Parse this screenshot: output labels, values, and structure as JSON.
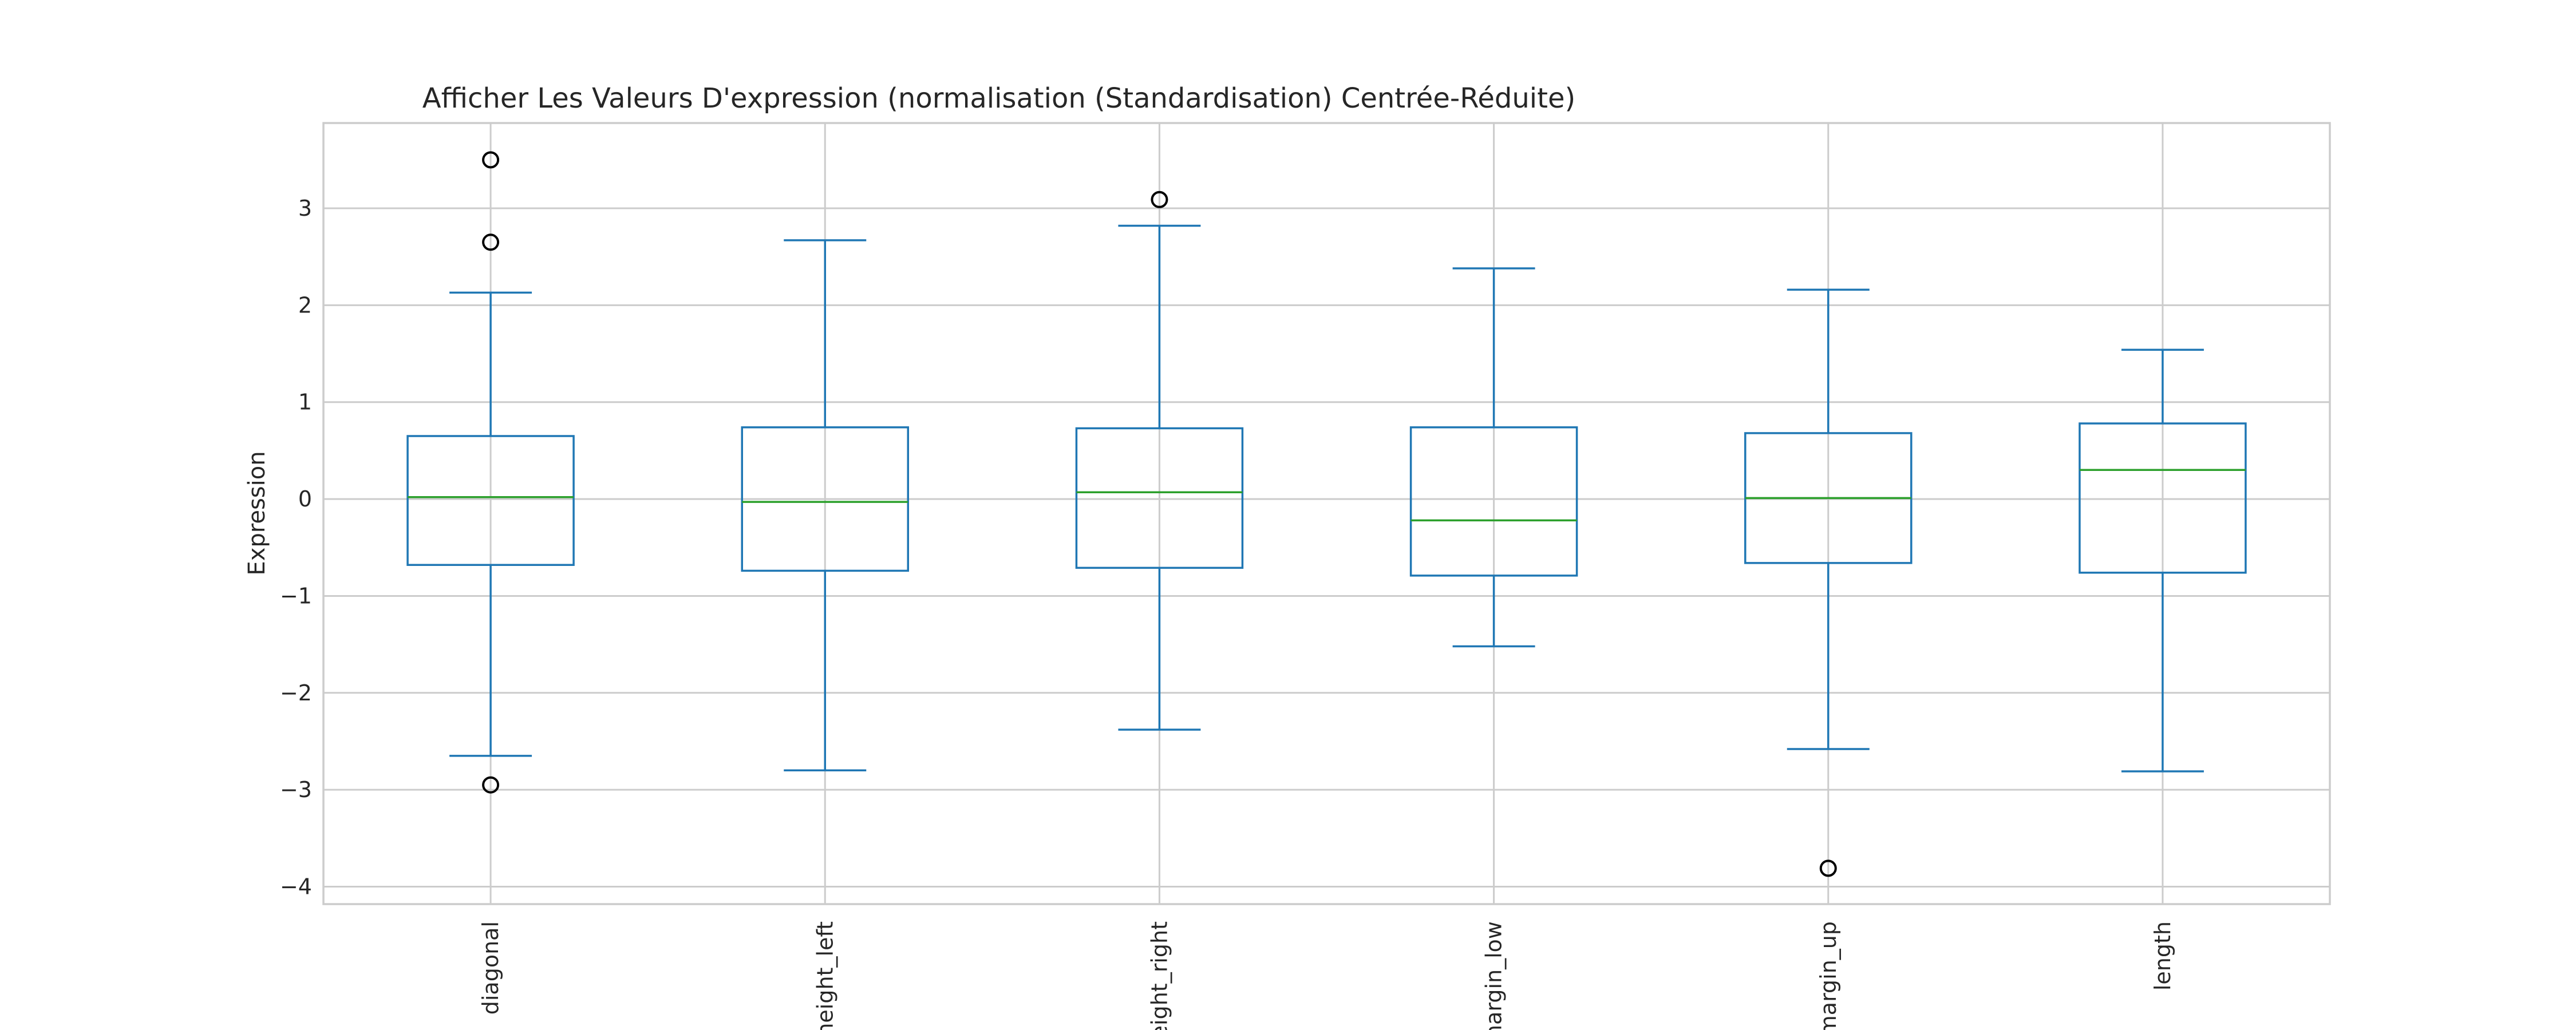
{
  "chart_data": {
    "type": "box",
    "title": "Afficher Les Valeurs D'expression (normalisation (Standardisation) Centrée-Réduite)",
    "xlabel": "",
    "ylabel": "Expression",
    "ylim": [
      -4.18,
      3.88
    ],
    "yticks": [
      -4,
      -3,
      -2,
      -1,
      0,
      1,
      2,
      3
    ],
    "ytick_labels": [
      "−4",
      "−3",
      "−2",
      "−1",
      "0",
      "1",
      "2",
      "3"
    ],
    "grid": true,
    "categories": [
      "diagonal",
      "height_left",
      "height_right",
      "margin_low",
      "margin_up",
      "length"
    ],
    "boxes": [
      {
        "name": "diagonal",
        "whislo": -2.65,
        "q1": -0.68,
        "median": 0.02,
        "q3": 0.65,
        "whishi": 2.13,
        "fliers": [
          3.5,
          2.65,
          -2.95
        ]
      },
      {
        "name": "height_left",
        "whislo": -2.8,
        "q1": -0.74,
        "median": -0.03,
        "q3": 0.74,
        "whishi": 2.67,
        "fliers": []
      },
      {
        "name": "height_right",
        "whislo": -2.38,
        "q1": -0.71,
        "median": 0.07,
        "q3": 0.73,
        "whishi": 2.82,
        "fliers": [
          3.09
        ]
      },
      {
        "name": "margin_low",
        "whislo": -1.52,
        "q1": -0.79,
        "median": -0.22,
        "q3": 0.74,
        "whishi": 2.38,
        "fliers": []
      },
      {
        "name": "margin_up",
        "whislo": -2.58,
        "q1": -0.66,
        "median": 0.01,
        "q3": 0.68,
        "whishi": 2.16,
        "fliers": [
          -3.81
        ]
      },
      {
        "name": "length",
        "whislo": -2.81,
        "q1": -0.76,
        "median": 0.3,
        "q3": 0.78,
        "whishi": 1.54,
        "fliers": []
      }
    ]
  }
}
